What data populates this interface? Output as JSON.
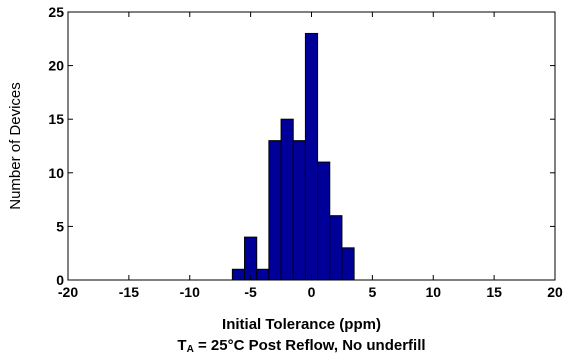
{
  "chart_data": {
    "type": "bar",
    "bin_width": 1,
    "bins": [
      {
        "center": -6,
        "count": 1
      },
      {
        "center": -5,
        "count": 4
      },
      {
        "center": -4,
        "count": 1
      },
      {
        "center": -3,
        "count": 13
      },
      {
        "center": -2,
        "count": 15
      },
      {
        "center": -1,
        "count": 13
      },
      {
        "center": 0,
        "count": 23
      },
      {
        "center": 1,
        "count": 11
      },
      {
        "center": 2,
        "count": 6
      },
      {
        "center": 3,
        "count": 3
      }
    ],
    "xlim": [
      -20,
      20
    ],
    "ylim": [
      0,
      25
    ],
    "x_ticks": [
      -20,
      -15,
      -10,
      -5,
      0,
      5,
      10,
      15,
      20
    ],
    "x_tick_labels": [
      "-20",
      "-15",
      "-10",
      "-5",
      "0",
      "5",
      "10",
      "15",
      "20"
    ],
    "y_ticks": [
      0,
      5,
      10,
      15,
      20,
      25
    ],
    "y_tick_labels": [
      "0",
      "5",
      "10",
      "15",
      "20",
      "25"
    ],
    "xlabel": "Initial Tolerance (ppm)",
    "ylabel": "Number of Devices",
    "subtitle_prefix": "T",
    "subtitle_subscript": "A",
    "subtitle_rest": " = 25°C Post Reflow, No underfill",
    "grid": false,
    "bar_color": "#000099",
    "edge_color": "#000000"
  }
}
